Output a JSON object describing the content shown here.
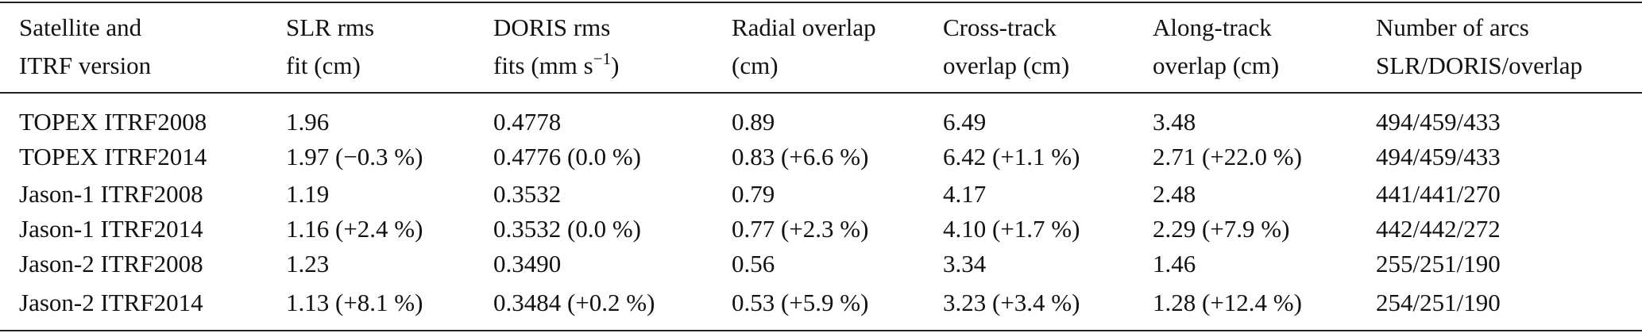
{
  "table": {
    "header": [
      {
        "line1": "Satellite and",
        "line2": "ITRF version"
      },
      {
        "line1": "SLR rms",
        "line2": "fit (cm)"
      },
      {
        "line1": "DORIS rms",
        "line2": "fits (mm s",
        "line2_sup": "−1",
        "line2_end": ")"
      },
      {
        "line1": "Radial overlap",
        "line2": "(cm)"
      },
      {
        "line1": "Cross-track",
        "line2": "overlap (cm)"
      },
      {
        "line1": "Along-track",
        "line2": "overlap (cm)"
      },
      {
        "line1": "Number of arcs",
        "line2": "SLR/DORIS/overlap"
      }
    ],
    "rows": [
      [
        "TOPEX ITRF2008",
        "1.96",
        "0.4778",
        "0.89",
        "6.49",
        "3.48",
        "494/459/433"
      ],
      [
        "TOPEX ITRF2014",
        "1.97 (−0.3 %)",
        "0.4776 (0.0 %)",
        "0.83 (+6.6 %)",
        "6.42 (+1.1 %)",
        "2.71 (+22.0 %)",
        "494/459/433"
      ],
      [
        "Jason-1 ITRF2008",
        "1.19",
        "0.3532",
        "0.79",
        "4.17",
        "2.48",
        "441/441/270"
      ],
      [
        "Jason-1 ITRF2014",
        "1.16 (+2.4 %)",
        "0.3532 (0.0 %)",
        "0.77 (+2.3 %)",
        "4.10 (+1.7 %)",
        "2.29 (+7.9 %)",
        "442/442/272"
      ],
      [
        "Jason-2 ITRF2008",
        "1.23",
        "0.3490",
        "0.56",
        "3.34",
        "1.46",
        "255/251/190"
      ],
      [
        "Jason-2 ITRF2014",
        "1.13 (+8.1 %)",
        "0.3484 (+0.2 %)",
        "0.53 (+5.9 %)",
        "3.23 (+3.4 %)",
        "1.28 (+12.4 %)",
        "254/251/190"
      ]
    ]
  }
}
